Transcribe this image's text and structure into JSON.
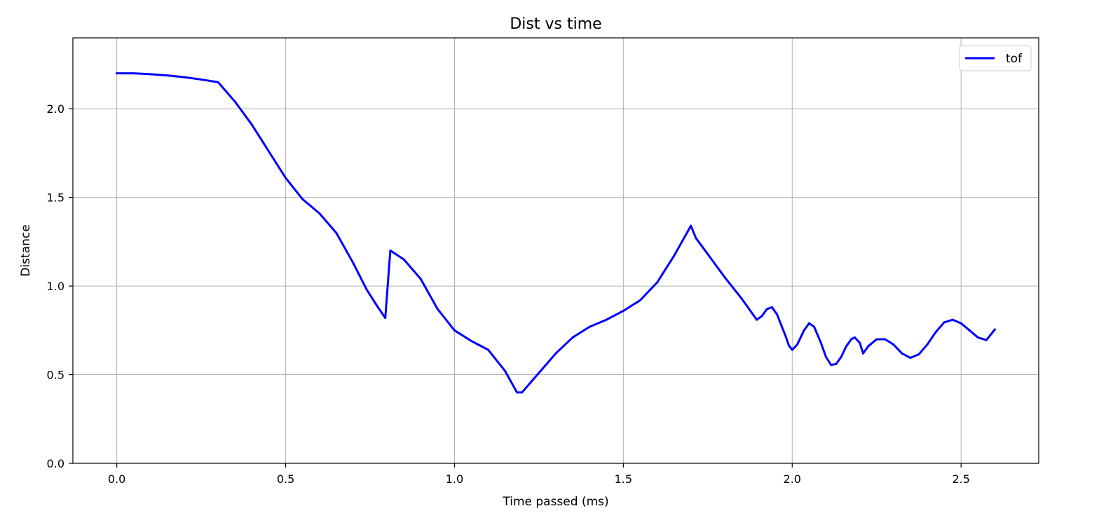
{
  "chart_data": {
    "type": "line",
    "title": "Dist vs time",
    "xlabel": "Time passed (ms)",
    "ylabel": "Distance",
    "xlim": [
      -0.13,
      2.73
    ],
    "ylim": [
      0.0,
      2.4
    ],
    "xticks": [
      0.0,
      0.5,
      1.0,
      1.5,
      2.0,
      2.5
    ],
    "xtick_labels": [
      "0.0",
      "0.5",
      "1.0",
      "1.5",
      "2.0",
      "2.5"
    ],
    "yticks": [
      0.0,
      0.5,
      1.0,
      1.5,
      2.0
    ],
    "ytick_labels": [
      "0.0",
      "0.5",
      "1.0",
      "1.5",
      "2.0"
    ],
    "grid": true,
    "legend_position": "top-right",
    "series": [
      {
        "name": "tof",
        "color": "#0000ff",
        "points": [
          [
            0.0,
            2.2
          ],
          [
            0.05,
            2.2
          ],
          [
            0.1,
            2.195
          ],
          [
            0.15,
            2.188
          ],
          [
            0.2,
            2.178
          ],
          [
            0.25,
            2.165
          ],
          [
            0.3,
            2.15
          ],
          [
            0.35,
            2.04
          ],
          [
            0.4,
            1.91
          ],
          [
            0.45,
            1.76
          ],
          [
            0.5,
            1.61
          ],
          [
            0.55,
            1.49
          ],
          [
            0.6,
            1.41
          ],
          [
            0.65,
            1.3
          ],
          [
            0.7,
            1.13
          ],
          [
            0.74,
            0.98
          ],
          [
            0.77,
            0.89
          ],
          [
            0.795,
            0.82
          ],
          [
            0.81,
            1.2
          ],
          [
            0.85,
            1.15
          ],
          [
            0.9,
            1.04
          ],
          [
            0.95,
            0.87
          ],
          [
            1.0,
            0.75
          ],
          [
            1.05,
            0.69
          ],
          [
            1.1,
            0.64
          ],
          [
            1.15,
            0.52
          ],
          [
            1.185,
            0.4
          ],
          [
            1.2,
            0.4
          ],
          [
            1.25,
            0.51
          ],
          [
            1.3,
            0.62
          ],
          [
            1.35,
            0.71
          ],
          [
            1.4,
            0.77
          ],
          [
            1.45,
            0.81
          ],
          [
            1.5,
            0.86
          ],
          [
            1.55,
            0.92
          ],
          [
            1.6,
            1.02
          ],
          [
            1.65,
            1.17
          ],
          [
            1.7,
            1.34
          ],
          [
            1.715,
            1.27
          ],
          [
            1.75,
            1.18
          ],
          [
            1.8,
            1.05
          ],
          [
            1.85,
            0.93
          ],
          [
            1.895,
            0.81
          ],
          [
            1.91,
            0.83
          ],
          [
            1.925,
            0.87
          ],
          [
            1.94,
            0.88
          ],
          [
            1.955,
            0.84
          ],
          [
            1.98,
            0.72
          ],
          [
            1.99,
            0.665
          ],
          [
            2.0,
            0.64
          ],
          [
            2.015,
            0.67
          ],
          [
            2.035,
            0.75
          ],
          [
            2.05,
            0.79
          ],
          [
            2.065,
            0.77
          ],
          [
            2.085,
            0.68
          ],
          [
            2.1,
            0.6
          ],
          [
            2.115,
            0.555
          ],
          [
            2.13,
            0.56
          ],
          [
            2.145,
            0.6
          ],
          [
            2.16,
            0.66
          ],
          [
            2.175,
            0.7
          ],
          [
            2.185,
            0.71
          ],
          [
            2.2,
            0.68
          ],
          [
            2.21,
            0.62
          ],
          [
            2.225,
            0.66
          ],
          [
            2.25,
            0.7
          ],
          [
            2.275,
            0.7
          ],
          [
            2.3,
            0.67
          ],
          [
            2.325,
            0.62
          ],
          [
            2.35,
            0.595
          ],
          [
            2.375,
            0.615
          ],
          [
            2.4,
            0.67
          ],
          [
            2.425,
            0.74
          ],
          [
            2.45,
            0.795
          ],
          [
            2.475,
            0.81
          ],
          [
            2.5,
            0.79
          ],
          [
            2.525,
            0.75
          ],
          [
            2.55,
            0.71
          ],
          [
            2.575,
            0.695
          ],
          [
            2.6,
            0.755
          ]
        ]
      }
    ]
  }
}
